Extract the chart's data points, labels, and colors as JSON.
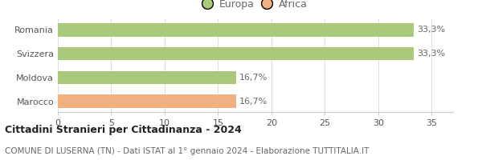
{
  "categories": [
    "Romania",
    "Svizzera",
    "Moldova",
    "Marocco"
  ],
  "values": [
    33.3,
    33.3,
    16.7,
    16.7
  ],
  "bar_colors": [
    "#a8c87a",
    "#a8c87a",
    "#a8c87a",
    "#f0b080"
  ],
  "value_labels": [
    "33,3%",
    "33,3%",
    "16,7%",
    "16,7%"
  ],
  "xlim": [
    0,
    37
  ],
  "xticks": [
    0,
    5,
    10,
    15,
    20,
    25,
    30,
    35
  ],
  "legend_items": [
    {
      "label": "Europa",
      "color": "#a8c87a"
    },
    {
      "label": "Africa",
      "color": "#f0b080"
    }
  ],
  "title": "Cittadini Stranieri per Cittadinanza - 2024",
  "subtitle": "COMUNE DI LUSERNA (TN) - Dati ISTAT al 1° gennaio 2024 - Elaborazione TUTTITALIA.IT",
  "background_color": "#ffffff",
  "bar_height": 0.55,
  "title_fontsize": 9,
  "subtitle_fontsize": 7.5,
  "label_fontsize": 8,
  "tick_fontsize": 8,
  "legend_fontsize": 9
}
